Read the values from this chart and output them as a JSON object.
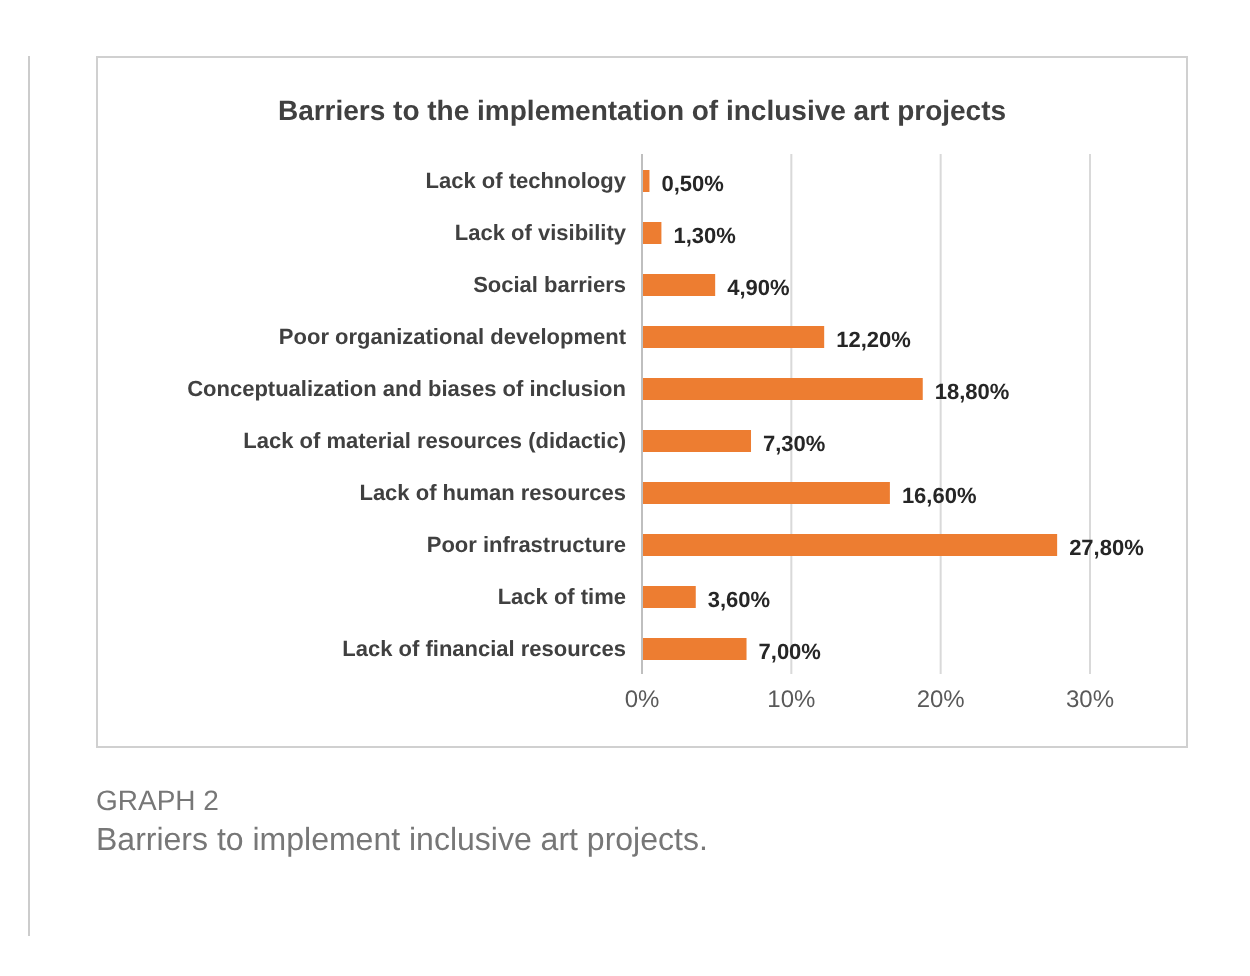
{
  "chart_data": {
    "type": "bar",
    "orientation": "horizontal",
    "title": "Barriers to the implementation of inclusive art projects",
    "categories": [
      "Lack of technology",
      "Lack of visibility",
      "Social barriers",
      "Poor organizational development",
      "Conceptualization and biases of inclusion",
      "Lack of material resources (didactic)",
      "Lack of human resources",
      "Poor infrastructure",
      "Lack of time",
      "Lack of financial resources"
    ],
    "values": [
      0.5,
      1.3,
      4.9,
      12.2,
      18.8,
      7.3,
      16.6,
      27.8,
      3.6,
      7.0
    ],
    "value_labels": [
      "0,50%",
      "1,30%",
      "4,90%",
      "12,20%",
      "18,80%",
      "7,30%",
      "16,60%",
      "27,80%",
      "3,60%",
      "7,00%"
    ],
    "color": "#ed7d31",
    "xlim": [
      0,
      30
    ],
    "xticks": [
      {
        "value": 0,
        "label": "0%"
      },
      {
        "value": 10,
        "label": "10%"
      },
      {
        "value": 20,
        "label": "20%"
      },
      {
        "value": 30,
        "label": "30%"
      }
    ],
    "grid": "x",
    "annotations": [
      "GRAPH 2",
      "Barriers to implement inclusive art projects."
    ]
  }
}
